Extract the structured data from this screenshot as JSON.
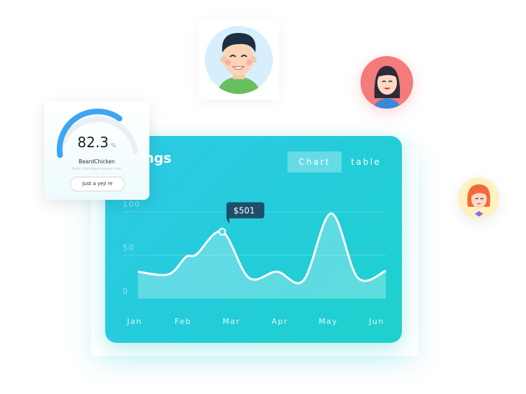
{
  "gauge_card": {
    "value": "82.3",
    "unit": "%",
    "name": "BeardChicken",
    "subtitle": "Risus scelerisque tempus enim",
    "button": "Just a yeji re",
    "fill_fraction": 0.68,
    "color": "#3aa6f5"
  },
  "chart_card": {
    "title_visible": "ngs",
    "tabs": [
      {
        "label": "Chart",
        "active": true
      },
      {
        "label": "table",
        "active": false
      }
    ],
    "tooltip": "$501"
  },
  "chart_data": {
    "type": "area",
    "categories": [
      "Jan",
      "Feb",
      "Mar",
      "Apr",
      "May",
      "Jun"
    ],
    "yticks": [
      "0",
      "50",
      "100"
    ],
    "ylim": [
      0,
      100
    ],
    "grid": true,
    "x": [
      0.07,
      0.7,
      1.06,
      1.28,
      1.81,
      2.36,
      2.94,
      3.49,
      4.06,
      4.61,
      5.19
    ],
    "values": [
      31,
      28,
      48,
      51,
      77,
      24,
      31,
      21,
      98,
      24,
      32
    ],
    "highlight_index": 4,
    "colors": {
      "line": "#ffffff",
      "tooltip": "#1d5068"
    }
  },
  "avatars": [
    {
      "name": "man",
      "bg": "#d7eefc"
    },
    {
      "name": "woman-dark-hair",
      "bg": "#f47b7b"
    },
    {
      "name": "woman-red-hair",
      "bg": "#fdf1bf"
    }
  ]
}
